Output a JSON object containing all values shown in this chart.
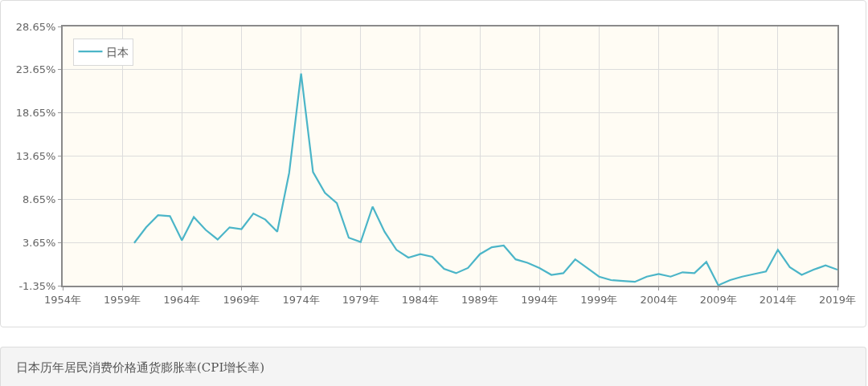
{
  "chart_data": {
    "type": "line",
    "x": [
      1960,
      1961,
      1962,
      1963,
      1964,
      1965,
      1966,
      1967,
      1968,
      1969,
      1970,
      1971,
      1972,
      1973,
      1974,
      1975,
      1976,
      1977,
      1978,
      1979,
      1980,
      1981,
      1982,
      1983,
      1984,
      1985,
      1986,
      1987,
      1988,
      1989,
      1990,
      1991,
      1992,
      1993,
      1994,
      1995,
      1996,
      1997,
      1998,
      1999,
      2000,
      2001,
      2002,
      2003,
      2004,
      2005,
      2006,
      2007,
      2008,
      2009,
      2010,
      2011,
      2012,
      2013,
      2014,
      2015,
      2016,
      2017,
      2018,
      2019
    ],
    "series": [
      {
        "name": "日本",
        "color": "#4bb5c8",
        "values": [
          3.6,
          5.4,
          6.8,
          6.7,
          3.9,
          6.6,
          5.1,
          4.0,
          5.4,
          5.2,
          7.0,
          6.3,
          4.9,
          11.7,
          23.2,
          11.8,
          9.4,
          8.2,
          4.2,
          3.7,
          7.8,
          4.9,
          2.8,
          1.9,
          2.3,
          2.0,
          0.6,
          0.1,
          0.7,
          2.3,
          3.1,
          3.3,
          1.7,
          1.3,
          0.7,
          -0.1,
          0.1,
          1.7,
          0.7,
          -0.3,
          -0.7,
          -0.8,
          -0.9,
          -0.3,
          0.0,
          -0.3,
          0.2,
          0.1,
          1.4,
          -1.3,
          -0.7,
          -0.3,
          0.0,
          0.3,
          2.8,
          0.8,
          -0.1,
          0.5,
          1.0,
          0.5
        ]
      }
    ],
    "xlim": [
      1954,
      2019
    ],
    "xticks": [
      {
        "value": 1954,
        "label": "1954年"
      },
      {
        "value": 1959,
        "label": "1959年"
      },
      {
        "value": 1964,
        "label": "1964年"
      },
      {
        "value": 1969,
        "label": "1969年"
      },
      {
        "value": 1974,
        "label": "1974年"
      },
      {
        "value": 1979,
        "label": "1979年"
      },
      {
        "value": 1984,
        "label": "1984年"
      },
      {
        "value": 1989,
        "label": "1989年"
      },
      {
        "value": 1994,
        "label": "1994年"
      },
      {
        "value": 1999,
        "label": "1999年"
      },
      {
        "value": 2004,
        "label": "2004年"
      },
      {
        "value": 2009,
        "label": "2009年"
      },
      {
        "value": 2014,
        "label": "2014年"
      },
      {
        "value": 2019,
        "label": "2019年"
      }
    ],
    "ylim": [
      -1.35,
      28.65
    ],
    "yticks": [
      {
        "value": -1.35,
        "label": "-1.35%"
      },
      {
        "value": 3.65,
        "label": "3.65%"
      },
      {
        "value": 8.65,
        "label": "8.65%"
      },
      {
        "value": 13.65,
        "label": "13.65%"
      },
      {
        "value": 18.65,
        "label": "18.65%"
      },
      {
        "value": 23.65,
        "label": "23.65%"
      },
      {
        "value": 28.65,
        "label": "28.65%"
      }
    ],
    "grid": true,
    "legend": "top left",
    "line_style": "solid",
    "annotations": [
      "日本历年居民消费价格通货膨胀率(CPI增长率)"
    ]
  }
}
